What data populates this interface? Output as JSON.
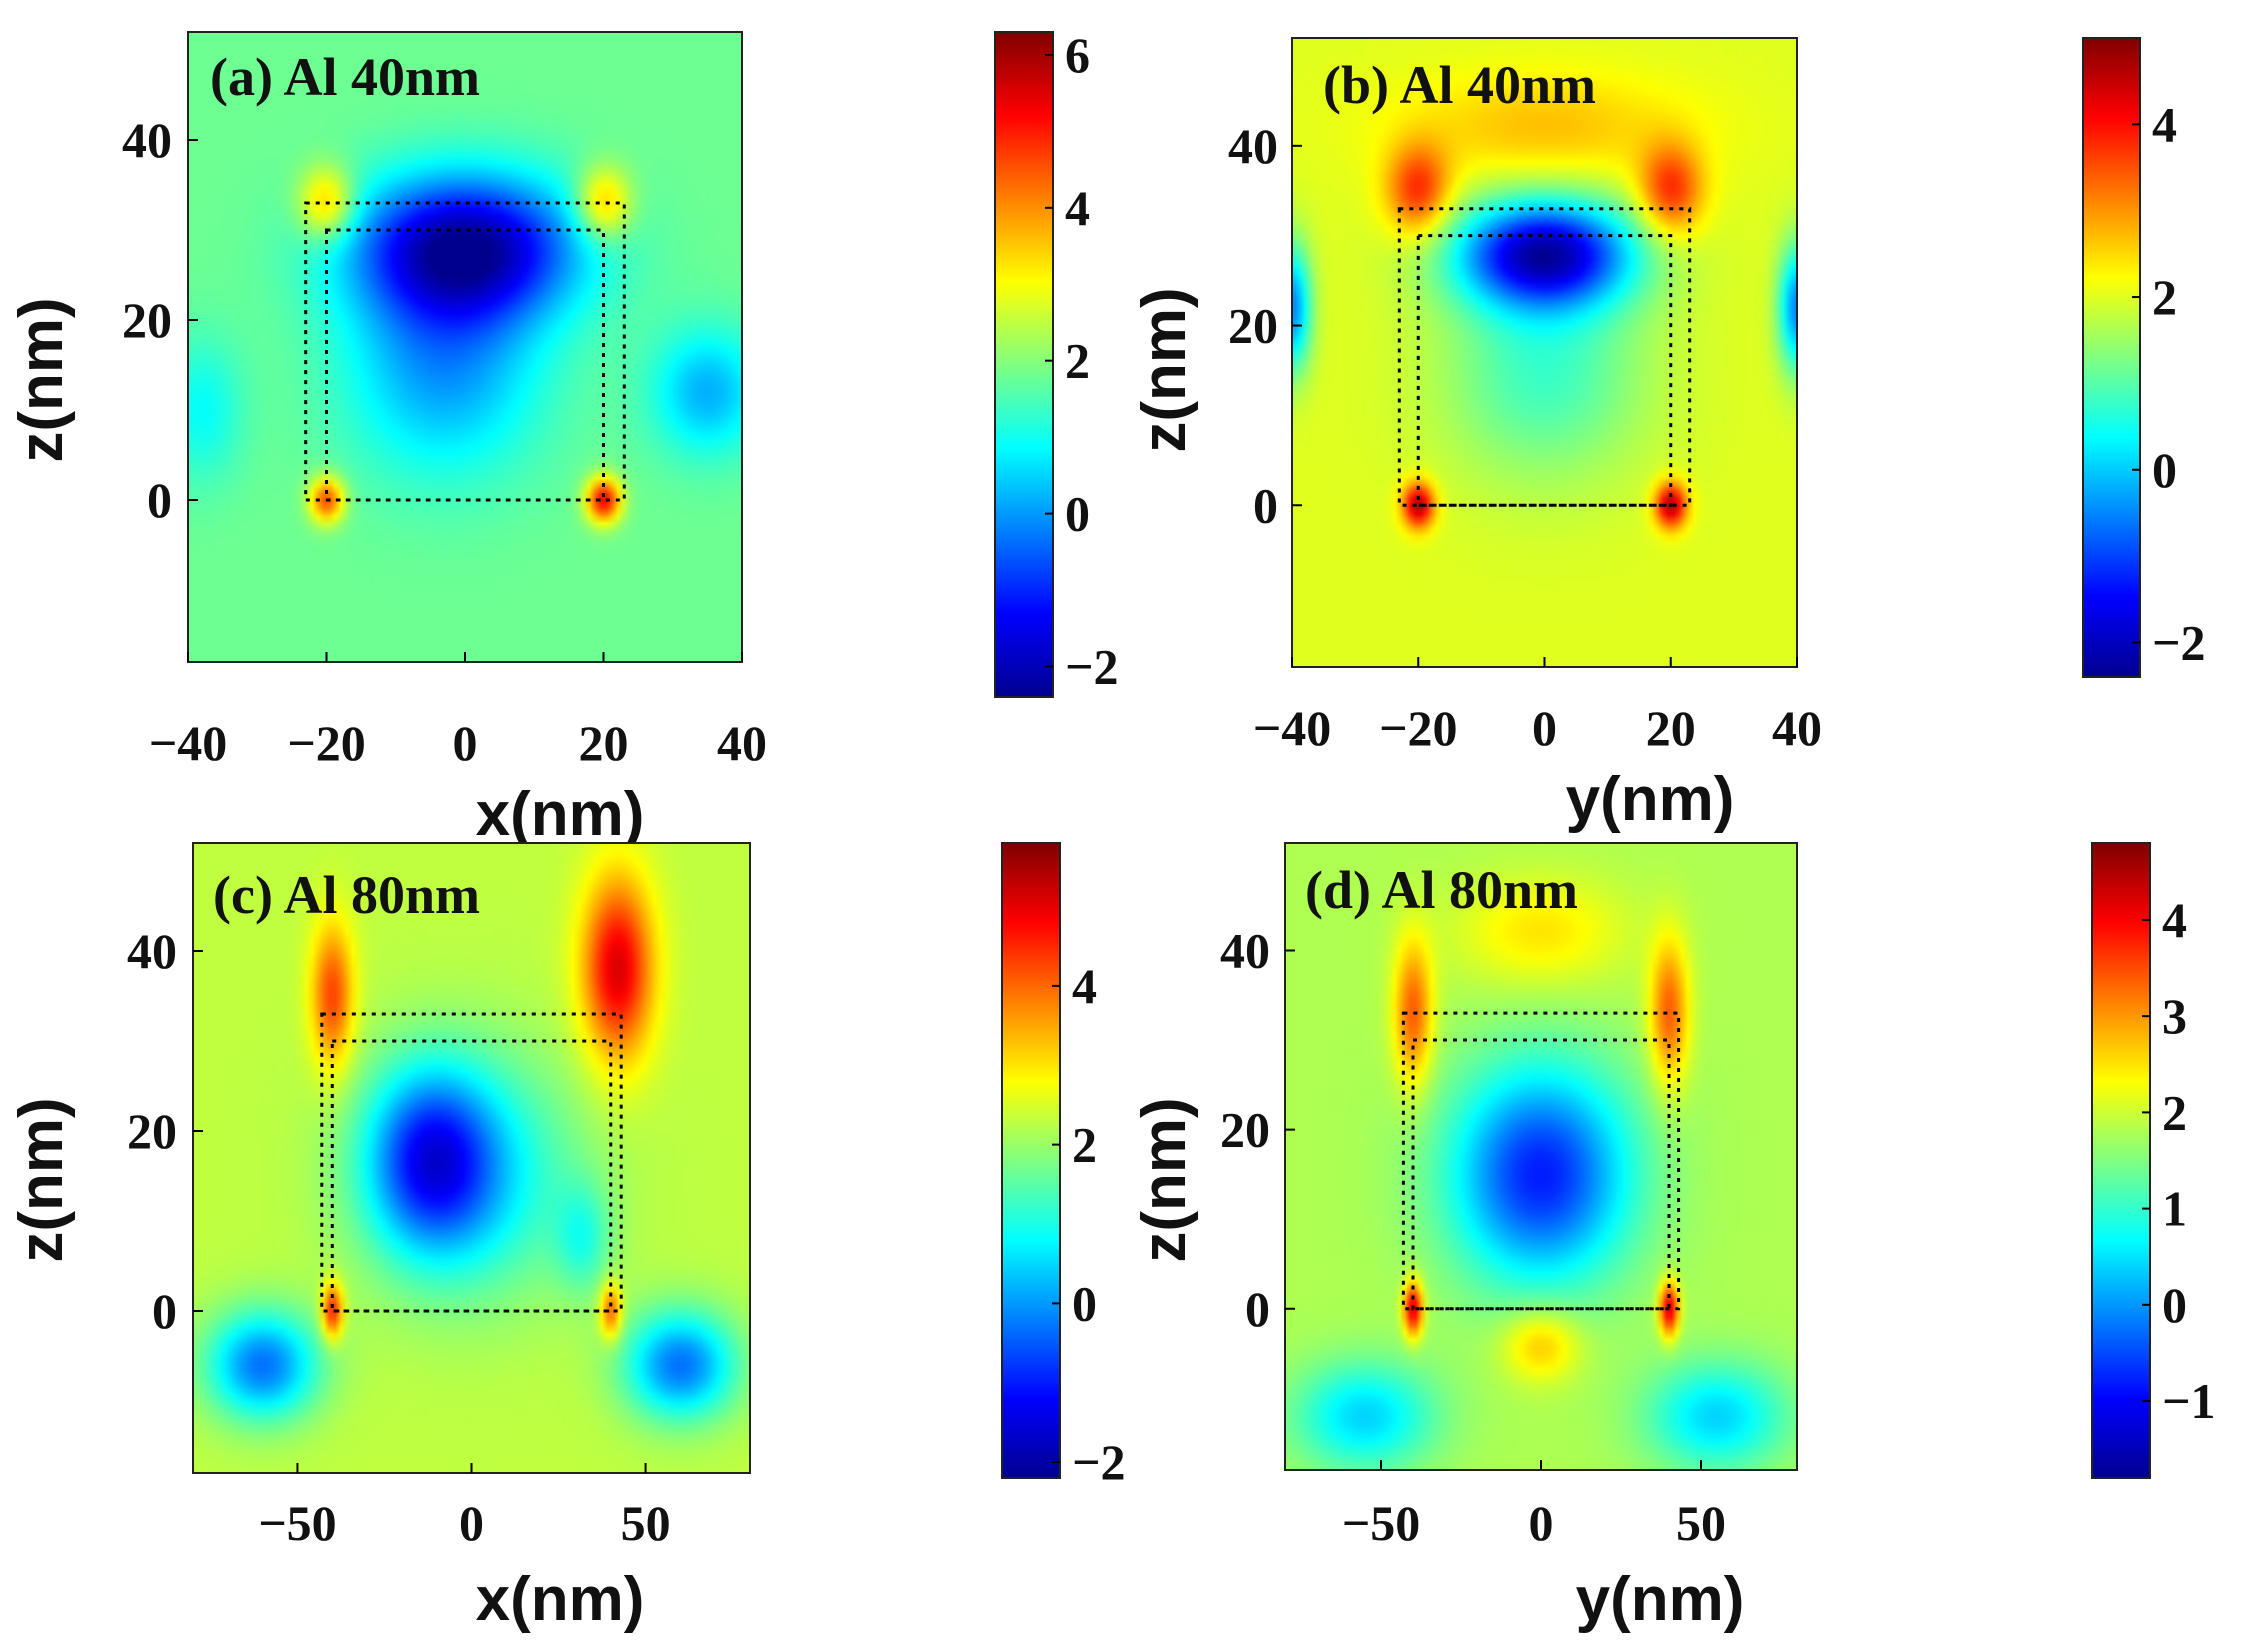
{
  "colors": {
    "jet": [
      "#00008f",
      "#0000ff",
      "#0080ff",
      "#00ffff",
      "#80ff80",
      "#ffff00",
      "#ff8000",
      "#ff0000",
      "#800000"
    ]
  },
  "chart_data": [
    {
      "type": "heatmap",
      "title": "(a) Al 40nm",
      "xlabel": "x(nm)",
      "ylabel": "z(nm)",
      "xlim": [
        -40,
        40
      ],
      "ylim": [
        -18,
        52
      ],
      "xticks": [
        -40,
        -20,
        0,
        20,
        40
      ],
      "yticks": [
        0,
        20,
        40
      ],
      "colorbar": {
        "range": [
          -2.4,
          6.3
        ],
        "ticks": [
          -2,
          0,
          2,
          4,
          6
        ]
      },
      "background": 1.8,
      "outer_box": {
        "x": [
          -23,
          23
        ],
        "z": [
          0,
          33
        ]
      },
      "inner_box": {
        "x": [
          -20,
          20
        ],
        "z": [
          0,
          30
        ]
      },
      "features": [
        {
          "x": 0,
          "z": 28,
          "sx": 16,
          "sz": 8,
          "amp": -4.0
        },
        {
          "x": -3,
          "z": 15,
          "sx": 14,
          "sz": 12,
          "amp": -1.8
        },
        {
          "x": 35,
          "z": 12,
          "sx": 8,
          "sz": 7,
          "amp": -1.6
        },
        {
          "x": -38,
          "z": 10,
          "sx": 6,
          "sz": 8,
          "amp": -0.9
        },
        {
          "x": -20,
          "z": 33,
          "sx": 4,
          "sz": 4,
          "amp": 2.0
        },
        {
          "x": 20,
          "z": 33,
          "sx": 4,
          "sz": 4,
          "amp": 2.0
        },
        {
          "x": -20,
          "z": 0,
          "sx": 2.5,
          "sz": 2.5,
          "amp": 2.8
        },
        {
          "x": 20,
          "z": 0,
          "sx": 2.5,
          "sz": 2.5,
          "amp": 3.5
        }
      ]
    },
    {
      "type": "heatmap",
      "title": "(b) Al 40nm",
      "xlabel": "y(nm)",
      "ylabel": "z(nm)",
      "xlim": [
        -40,
        40
      ],
      "ylim": [
        -18,
        52
      ],
      "xticks": [
        -40,
        -20,
        0,
        20,
        40
      ],
      "yticks": [
        0,
        20,
        40
      ],
      "colorbar": {
        "range": [
          -2.4,
          5.0
        ],
        "ticks": [
          -2,
          0,
          2,
          4
        ]
      },
      "background": 2.0,
      "outer_box": {
        "x": [
          -23,
          23
        ],
        "z": [
          0,
          33
        ]
      },
      "inner_box": {
        "x": [
          -20,
          20
        ],
        "z": [
          0,
          30
        ]
      },
      "features": [
        {
          "x": 0,
          "z": 28,
          "sx": 14,
          "sz": 6,
          "amp": -4.0
        },
        {
          "x": 0,
          "z": 15,
          "sx": 16,
          "sz": 12,
          "amp": -1.2
        },
        {
          "x": -40,
          "z": 22,
          "sx": 3,
          "sz": 7,
          "amp": -2.5
        },
        {
          "x": 40,
          "z": 22,
          "sx": 3,
          "sz": 7,
          "amp": -2.5
        },
        {
          "x": 0,
          "z": 42,
          "sx": 22,
          "sz": 6,
          "amp": 0.7
        },
        {
          "x": -20,
          "z": 35,
          "sx": 5,
          "sz": 5,
          "amp": 1.8
        },
        {
          "x": 20,
          "z": 35,
          "sx": 5,
          "sz": 5,
          "amp": 1.8
        },
        {
          "x": -20,
          "z": 0,
          "sx": 2.5,
          "sz": 2.5,
          "amp": 2.7
        },
        {
          "x": 20,
          "z": 0,
          "sx": 2.5,
          "sz": 2.5,
          "amp": 2.7
        }
      ]
    },
    {
      "type": "heatmap",
      "title": "(c) Al 80nm",
      "xlabel": "x(nm)",
      "ylabel": "z(nm)",
      "xlim": [
        -80,
        80
      ],
      "ylim": [
        -18,
        52
      ],
      "xticks": [
        -50,
        0,
        50
      ],
      "yticks": [
        0,
        20,
        40
      ],
      "colorbar": {
        "range": [
          -2.2,
          5.8
        ],
        "ticks": [
          -2,
          0,
          2,
          4
        ]
      },
      "background": 2.3,
      "outer_box": {
        "x": [
          -43,
          43
        ],
        "z": [
          0,
          33
        ]
      },
      "inner_box": {
        "x": [
          -40,
          40
        ],
        "z": [
          0,
          30
        ]
      },
      "features": [
        {
          "x": -12,
          "z": 17,
          "sx": 18,
          "sz": 10,
          "amp": -2.6
        },
        {
          "x": 0,
          "z": 15,
          "sx": 30,
          "sz": 13,
          "amp": -1.6
        },
        {
          "x": 32,
          "z": 8,
          "sx": 8,
          "sz": 6,
          "amp": -1.0
        },
        {
          "x": -60,
          "z": -6,
          "sx": 16,
          "sz": 6,
          "amp": -2.6
        },
        {
          "x": 60,
          "z": -6,
          "sx": 16,
          "sz": 6,
          "amp": -2.6
        },
        {
          "x": -40,
          "z": 35,
          "sx": 6,
          "sz": 8,
          "amp": 2.0
        },
        {
          "x": 42,
          "z": 38,
          "sx": 10,
          "sz": 10,
          "amp": 2.8
        },
        {
          "x": -40,
          "z": 0,
          "sx": 3,
          "sz": 3,
          "amp": 2.5
        },
        {
          "x": 40,
          "z": 0,
          "sx": 3,
          "sz": 3,
          "amp": 2.0
        }
      ]
    },
    {
      "type": "heatmap",
      "title": "(d) Al 80nm",
      "xlabel": "y(nm)",
      "ylabel": "z(nm)",
      "xlim": [
        -80,
        80
      ],
      "ylim": [
        -18,
        52
      ],
      "xticks": [
        -50,
        0,
        50
      ],
      "yticks": [
        0,
        20,
        40
      ],
      "colorbar": {
        "range": [
          -1.8,
          4.8
        ],
        "ticks": [
          -1,
          0,
          1,
          2,
          3,
          4
        ]
      },
      "background": 1.8,
      "outer_box": {
        "x": [
          -43,
          43
        ],
        "z": [
          0,
          33
        ]
      },
      "inner_box": {
        "x": [
          -40,
          40
        ],
        "z": [
          0,
          30
        ]
      },
      "features": [
        {
          "x": 0,
          "z": 15,
          "sx": 28,
          "sz": 12,
          "amp": -2.6
        },
        {
          "x": 0,
          "z": 42,
          "sx": 26,
          "sz": 6,
          "amp": 0.7
        },
        {
          "x": -40,
          "z": 33,
          "sx": 6,
          "sz": 8,
          "amp": 1.6
        },
        {
          "x": 40,
          "z": 33,
          "sx": 6,
          "sz": 8,
          "amp": 1.6
        },
        {
          "x": 0,
          "z": -4,
          "sx": 12,
          "sz": 4,
          "amp": 1.0
        },
        {
          "x": -55,
          "z": -12,
          "sx": 22,
          "sz": 6,
          "amp": -1.4
        },
        {
          "x": 55,
          "z": -12,
          "sx": 22,
          "sz": 6,
          "amp": -1.4
        },
        {
          "x": -40,
          "z": 0,
          "sx": 3,
          "sz": 3,
          "amp": 2.5
        },
        {
          "x": 40,
          "z": 0,
          "sx": 3,
          "sz": 3,
          "amp": 2.5
        }
      ]
    }
  ]
}
